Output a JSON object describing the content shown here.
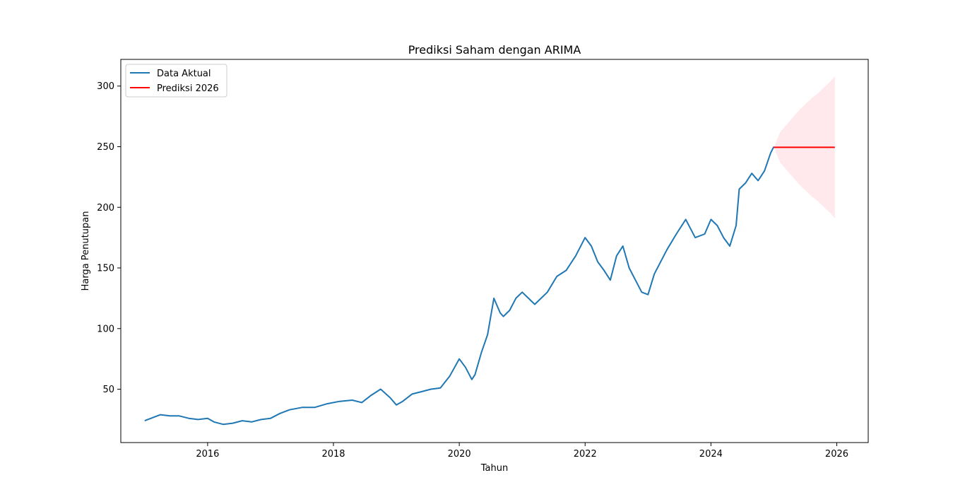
{
  "chart_data": {
    "type": "line",
    "title": "Prediksi Saham dengan ARIMA",
    "xlabel": "Tahun",
    "ylabel": "Harga Penutupan",
    "xlim": [
      2014.62,
      2026.5
    ],
    "ylim": [
      6,
      322
    ],
    "x_ticks": [
      2016,
      2018,
      2020,
      2022,
      2024,
      2026
    ],
    "y_ticks": [
      50,
      100,
      150,
      200,
      250,
      300
    ],
    "grid": false,
    "legend_position": "top-left",
    "series": [
      {
        "name": "Data Aktual",
        "color": "#1f77b4",
        "x": [
          2015.0,
          2015.1,
          2015.25,
          2015.4,
          2015.55,
          2015.7,
          2015.85,
          2016.0,
          2016.1,
          2016.25,
          2016.4,
          2016.55,
          2016.7,
          2016.85,
          2017.0,
          2017.15,
          2017.3,
          2017.5,
          2017.7,
          2017.9,
          2018.1,
          2018.3,
          2018.45,
          2018.6,
          2018.75,
          2018.9,
          2019.0,
          2019.1,
          2019.25,
          2019.4,
          2019.55,
          2019.7,
          2019.85,
          2020.0,
          2020.1,
          2020.2,
          2020.25,
          2020.35,
          2020.45,
          2020.55,
          2020.65,
          2020.7,
          2020.8,
          2020.9,
          2021.0,
          2021.1,
          2021.2,
          2021.3,
          2021.4,
          2021.55,
          2021.7,
          2021.85,
          2021.95,
          2022.0,
          2022.1,
          2022.2,
          2022.3,
          2022.4,
          2022.5,
          2022.6,
          2022.7,
          2022.8,
          2022.9,
          2023.0,
          2023.1,
          2023.2,
          2023.3,
          2023.45,
          2023.6,
          2023.75,
          2023.9,
          2024.0,
          2024.1,
          2024.2,
          2024.3,
          2024.4,
          2024.45,
          2024.55,
          2024.65,
          2024.75,
          2024.85,
          2024.95,
          2025.0
        ],
        "y": [
          24,
          26,
          29,
          28,
          28,
          26,
          25,
          26,
          23,
          21,
          22,
          24,
          23,
          25,
          26,
          30,
          33,
          35,
          35,
          38,
          40,
          41,
          39,
          45,
          50,
          43,
          37,
          40,
          46,
          48,
          50,
          51,
          61,
          75,
          68,
          58,
          62,
          80,
          95,
          125,
          113,
          110,
          115,
          125,
          130,
          125,
          120,
          125,
          130,
          143,
          148,
          160,
          170,
          175,
          168,
          155,
          148,
          140,
          160,
          168,
          150,
          140,
          130,
          128,
          145,
          155,
          165,
          178,
          190,
          175,
          178,
          190,
          185,
          175,
          168,
          185,
          215,
          220,
          228,
          222,
          230,
          245,
          250
        ]
      },
      {
        "name": "Prediksi 2026",
        "color": "#ff0000",
        "x": [
          2025.0,
          2025.97
        ],
        "y": [
          249.5,
          249.5
        ]
      }
    ],
    "confidence_band": {
      "color": "#ffc0cb",
      "x": [
        2025.0,
        2025.1,
        2025.2,
        2025.3,
        2025.4,
        2025.5,
        2025.6,
        2025.7,
        2025.8,
        2025.9,
        2025.97
      ],
      "upper": [
        249.5,
        262,
        268,
        274,
        280,
        285,
        290,
        294,
        299,
        304,
        308
      ],
      "lower": [
        249.5,
        237,
        231,
        225,
        219,
        214,
        209,
        205,
        200,
        195,
        191
      ]
    }
  }
}
